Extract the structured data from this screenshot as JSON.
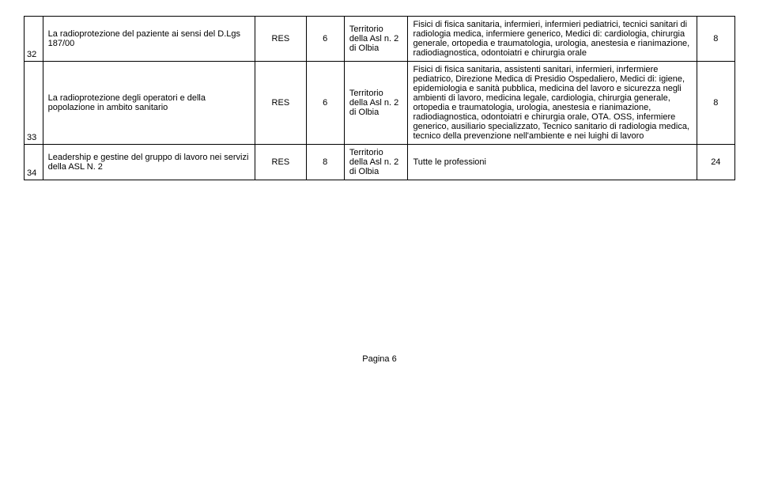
{
  "rows": [
    {
      "num": "32",
      "title": "La radioprotezione del paziente ai sensi del D.Lgs 187/00",
      "code": "RES",
      "qty": "6",
      "territory": "Territorio della Asl n. 2 di Olbia",
      "description": "Fisici di fisica sanitaria, infermieri, infermieri pediatrici, tecnici sanitari di radiologia medica, infermiere generico, Medici di: cardiologia, chirurgia generale, ortopedia e traumatologia, urologia, anestesia e rianimazione, radiodiagnostica, odontoiatri e chirurgia orale",
      "points": "8"
    },
    {
      "num": "33",
      "title": "La radioprotezione degli operatori e della popolazione in ambito sanitario",
      "code": "RES",
      "qty": "6",
      "territory": "Territorio della Asl n. 2 di Olbia",
      "description": "Fisici di fisica sanitaria, assistenti sanitari, infermieri, inrfermiere pediatrico, Direzione Medica di Presidio Ospedaliero, Medici di: igiene, epidemiologia e sanità pubblica, medicina del lavoro e sicurezza negli ambienti di lavoro, medicina legale, cardiologia, chirurgia generale, ortopedia e traumatologia, urologia, anestesia e rianimazione, radiodiagnostica, odontoiatri e chirurgia orale, OTA. OSS, infermiere generico, ausiliario specializzato, Tecnico sanitario  di  radiologia medica, tecnico della prevenzione nell'ambiente e nei luighi di lavoro",
      "points": "8"
    },
    {
      "num": "34",
      "title": "Leadership e gestine del gruppo di lavoro nei servizi della ASL N.     2",
      "code": "RES",
      "qty": "8",
      "territory": "Territorio della Asl n. 2 di Olbia",
      "description": "Tutte le professioni",
      "points": "24"
    }
  ],
  "footer": "Pagina 6",
  "style": {
    "font_family": "Arial",
    "font_size_pt": 11,
    "border_color": "#000000",
    "background_color": "#ffffff",
    "text_color": "#000000"
  }
}
